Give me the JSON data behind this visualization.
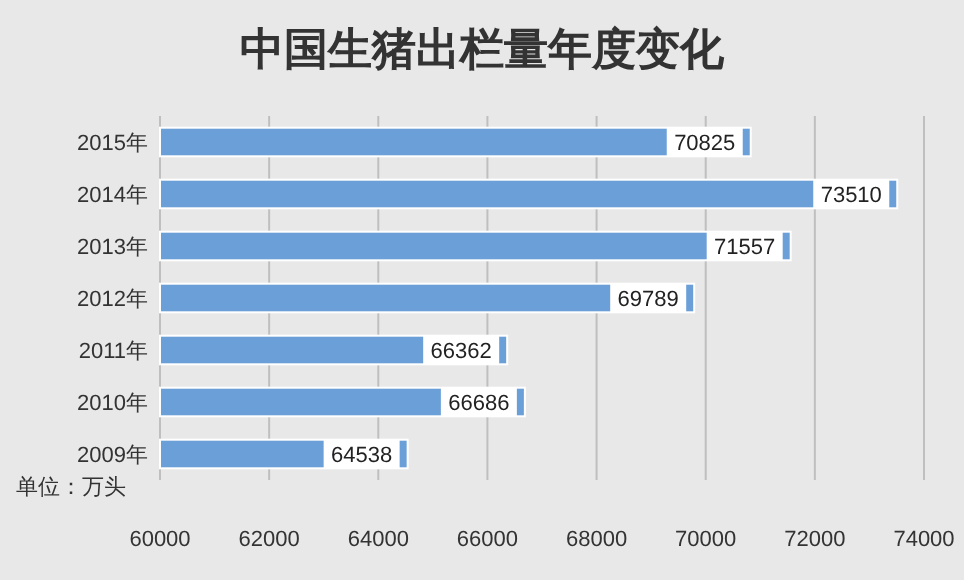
{
  "chart_data": {
    "type": "bar",
    "orientation": "horizontal",
    "title": "中国生猪出栏量年度变化",
    "categories": [
      "2015年",
      "2014年",
      "2013年",
      "2012年",
      "2011年",
      "2010年",
      "2009年"
    ],
    "values": [
      70825,
      73510,
      71557,
      69789,
      66362,
      66686,
      64538
    ],
    "color": "#6a9fd8",
    "xlim": [
      60000,
      74000
    ],
    "xticks": [
      60000,
      62000,
      64000,
      66000,
      68000,
      70000,
      72000,
      74000
    ],
    "grid": "x",
    "data_labels": true,
    "annotations": [
      "单位：万头"
    ]
  }
}
